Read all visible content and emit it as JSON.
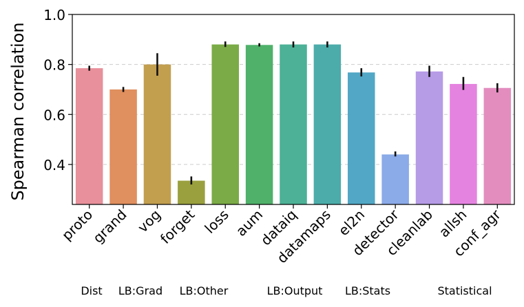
{
  "chart_data": {
    "type": "bar",
    "ylabel": "Spearman correlation",
    "xlabel": "",
    "ylim": [
      0.24,
      1.0
    ],
    "yticks": [
      "0.4",
      "0.6",
      "0.8",
      "1.0"
    ],
    "grid": "horizontal dashed",
    "categories": [
      "proto",
      "grand",
      "vog",
      "forget",
      "loss",
      "aum",
      "dataiq",
      "datamaps",
      "el2n",
      "detector",
      "cleanlab",
      "allsh",
      "conf_agr"
    ],
    "values": [
      0.785,
      0.7,
      0.8,
      0.335,
      0.88,
      0.878,
      0.88,
      0.88,
      0.768,
      0.44,
      0.772,
      0.722,
      0.706
    ],
    "error_low": [
      0.775,
      0.69,
      0.755,
      0.32,
      0.87,
      0.872,
      0.868,
      0.868,
      0.752,
      0.432,
      0.75,
      0.698,
      0.688
    ],
    "error_high": [
      0.795,
      0.71,
      0.845,
      0.352,
      0.892,
      0.885,
      0.892,
      0.892,
      0.785,
      0.452,
      0.795,
      0.75,
      0.725
    ],
    "colors": [
      "#e8909b",
      "#e08f5e",
      "#c29e4f",
      "#9aa03e",
      "#7bab46",
      "#4fb16a",
      "#4cb196",
      "#4cacaa",
      "#51a7c5",
      "#8aaae8",
      "#b69be7",
      "#e583e0",
      "#e38dbf"
    ],
    "groups": [
      "Dist",
      "LB:Grad",
      "LB:Other",
      "LB:Output",
      "LB:Stats",
      "Statistical"
    ]
  }
}
